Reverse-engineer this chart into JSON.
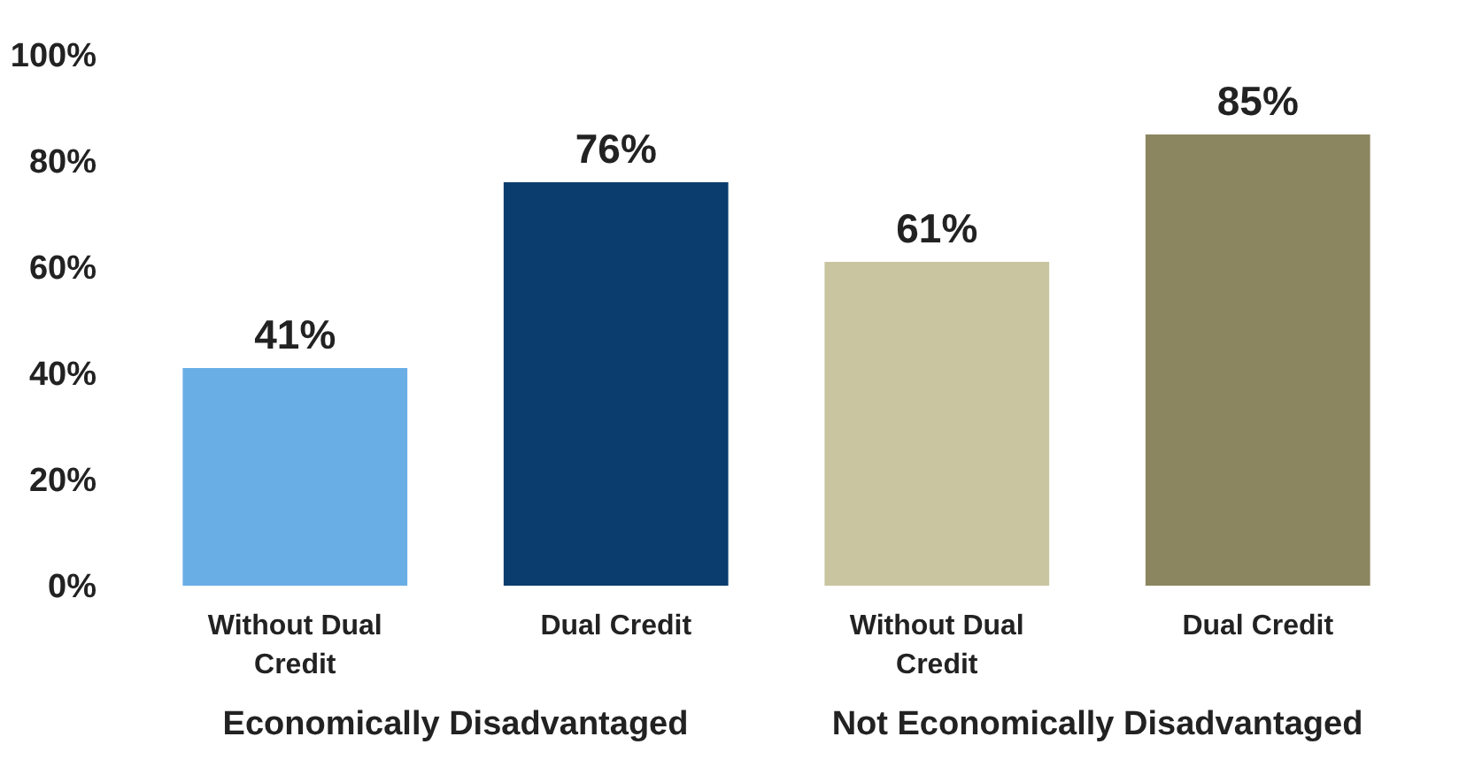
{
  "chart_data": {
    "type": "bar",
    "categories": [
      "Without Dual Credit",
      "Dual Credit",
      "Without Dual Credit",
      "Dual Credit"
    ],
    "values": [
      41,
      76,
      61,
      85
    ],
    "colors": [
      "#6aaee6",
      "#0b3d6e",
      "#c9c5a0",
      "#8c8660"
    ],
    "ylim": [
      0,
      100
    ],
    "yticks": [
      {
        "value": 0,
        "label": "0%"
      },
      {
        "value": 20,
        "label": "20%"
      },
      {
        "value": 40,
        "label": "40%"
      },
      {
        "value": 60,
        "label": "60%"
      },
      {
        "value": 80,
        "label": "80%"
      },
      {
        "value": 100,
        "label": "100%"
      }
    ],
    "value_labels": [
      "41%",
      "76%",
      "61%",
      "85%"
    ],
    "annotations": [
      "Economically Disadvantaged",
      "Not Economically Disadvantaged"
    ],
    "grid": false
  }
}
